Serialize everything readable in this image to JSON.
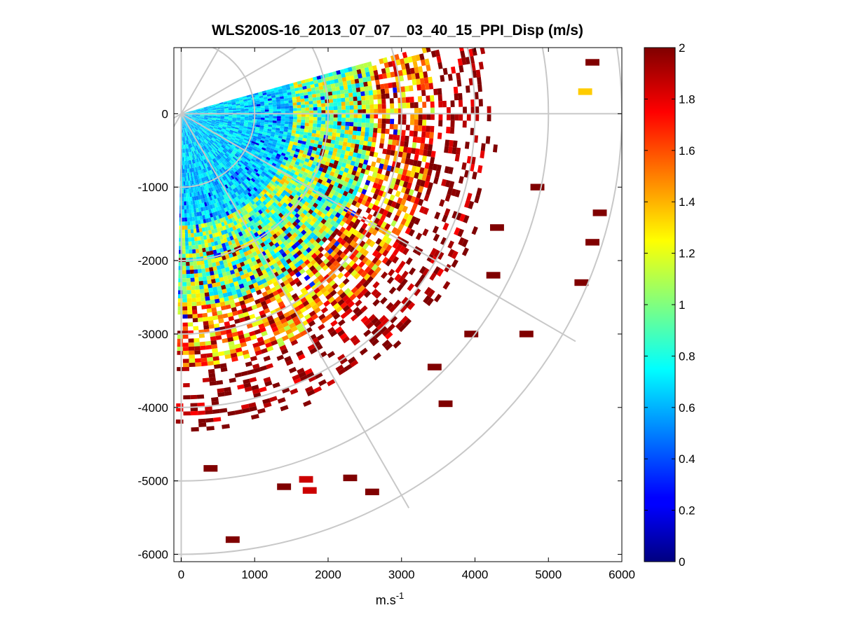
{
  "chart_data": {
    "type": "heatmap",
    "subtype": "polar-ppi-scan",
    "title": "WLS200S-16_2013_07_07__03_40_15_PPI_Disp (m/s)",
    "xlabel": "m.s",
    "xlabel_superscript": "-1",
    "ylabel": "",
    "xlim": [
      -100,
      6000
    ],
    "ylim": [
      -6100,
      900
    ],
    "xticks": [
      0,
      1000,
      2000,
      3000,
      4000,
      5000,
      6000
    ],
    "xtick_labels": [
      "0",
      "1000",
      "2000",
      "3000",
      "4000",
      "5000",
      "6000"
    ],
    "yticks": [
      0,
      -1000,
      -2000,
      -3000,
      -4000,
      -5000,
      -6000
    ],
    "ytick_labels": [
      "0",
      "-1000",
      "-2000",
      "-3000",
      "-4000",
      "-5000",
      "-6000"
    ],
    "grid": true,
    "polar_grid": {
      "ring_radii": [
        1000,
        2000,
        3000,
        4000,
        5000,
        6000
      ],
      "spoke_angles_deg": [
        90,
        60,
        30,
        0,
        -30,
        -60,
        -90,
        -120,
        -150
      ]
    },
    "scan_sector_deg": [
      -91,
      15
    ],
    "colorbar": {
      "colormap": "jet",
      "min": 0,
      "max": 2,
      "ticks": [
        0,
        0.2,
        0.4,
        0.6,
        0.8,
        1,
        1.2,
        1.4,
        1.6,
        1.8,
        2
      ],
      "tick_labels": [
        "0",
        "0.2",
        "0.4",
        "0.6",
        "0.8",
        "1",
        "1.2",
        "1.4",
        "1.6",
        "1.8",
        "2"
      ]
    },
    "field_description_by_range": [
      {
        "range_m": [
          0,
          1500
        ],
        "typical_value": 0.65,
        "spread": 0.18
      },
      {
        "range_m": [
          1500,
          2600
        ],
        "typical_value": 1.0,
        "spread": 0.4
      },
      {
        "range_m": [
          2600,
          3400
        ],
        "typical_value": 1.55,
        "spread": 0.45
      },
      {
        "range_m": [
          3400,
          4200
        ],
        "typical_value": 1.95,
        "spread": 0.2
      },
      {
        "range_m": [
          4200,
          6000
        ],
        "typical_value": 2.0,
        "spread": 0.05
      }
    ],
    "isolated_cells": [
      {
        "x": 700,
        "y": -5800,
        "value": 2.0
      },
      {
        "x": 1700,
        "y": -4980,
        "value": 1.85
      },
      {
        "x": 1750,
        "y": -5130,
        "value": 1.85
      },
      {
        "x": 2300,
        "y": -4960,
        "value": 2.0
      },
      {
        "x": 2600,
        "y": -5150,
        "value": 2.0
      },
      {
        "x": 1400,
        "y": -5080,
        "value": 2.0
      },
      {
        "x": 400,
        "y": -4830,
        "value": 2.0
      },
      {
        "x": 3600,
        "y": -3950,
        "value": 2.0
      },
      {
        "x": 3450,
        "y": -3450,
        "value": 2.0
      },
      {
        "x": 4700,
        "y": -3000,
        "value": 2.0
      },
      {
        "x": 5450,
        "y": -2300,
        "value": 2.0
      },
      {
        "x": 5600,
        "y": -1750,
        "value": 2.0
      },
      {
        "x": 5700,
        "y": -1350,
        "value": 2.0
      },
      {
        "x": 5500,
        "y": 300,
        "value": 1.35
      },
      {
        "x": 5600,
        "y": 700,
        "value": 2.0
      },
      {
        "x": 4850,
        "y": -1000,
        "value": 2.0
      },
      {
        "x": 4300,
        "y": -1550,
        "value": 2.0
      },
      {
        "x": 4250,
        "y": -2200,
        "value": 2.0
      },
      {
        "x": 3950,
        "y": -3000,
        "value": 2.0
      }
    ]
  }
}
